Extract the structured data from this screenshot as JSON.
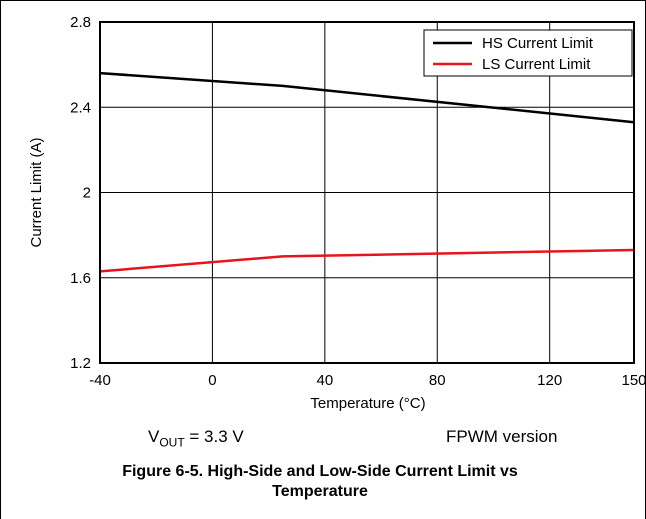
{
  "chart_data": {
    "type": "line",
    "xlabel": "Temperature (°C)",
    "ylabel": "Current Limit (A)",
    "xlim": [
      -40,
      150
    ],
    "ylim": [
      1.2,
      2.8
    ],
    "x_ticks": [
      "-40",
      "0",
      "40",
      "80",
      "120",
      "150"
    ],
    "y_ticks": [
      "1.2",
      "1.6",
      "2",
      "2.4",
      "2.8"
    ],
    "grid": true,
    "legend_position": "top-right",
    "series": [
      {
        "name": "HS Current Limit",
        "color": "#000000",
        "x": [
          -40,
          25,
          150
        ],
        "y": [
          2.56,
          2.5,
          2.33
        ]
      },
      {
        "name": "LS Current Limit",
        "color": "#e8141b",
        "x": [
          -40,
          25,
          150
        ],
        "y": [
          1.63,
          1.7,
          1.73
        ]
      }
    ]
  },
  "conditions": {
    "vout_prefix": "V",
    "vout_sub": "OUT",
    "vout_value": " = 3.3 V",
    "version": "FPWM version"
  },
  "caption": {
    "line1": "Figure 6-5. High-Side and Low-Side Current Limit vs",
    "line2": "Temperature"
  }
}
